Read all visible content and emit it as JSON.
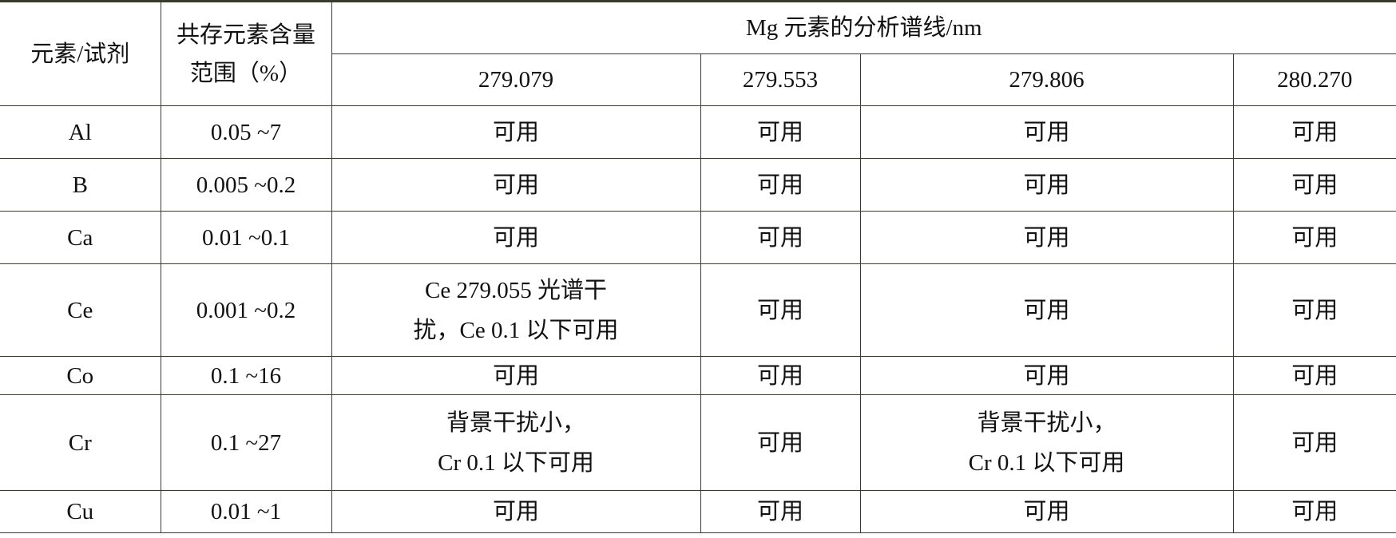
{
  "table": {
    "header": {
      "col1": "元素/试剂",
      "col2_line1": "共存元素含量",
      "col2_line2": "范围（%）",
      "group": "Mg 元素的分析谱线/nm",
      "wavelengths": [
        "279.079",
        "279.553",
        "279.806",
        "280.270"
      ]
    },
    "rows": [
      {
        "element": "Al",
        "range": "0.05 ~7",
        "cells": [
          [
            "可用"
          ],
          [
            "可用"
          ],
          [
            "可用"
          ],
          [
            "可用"
          ]
        ]
      },
      {
        "element": "B",
        "range": "0.005 ~0.2",
        "cells": [
          [
            "可用"
          ],
          [
            "可用"
          ],
          [
            "可用"
          ],
          [
            "可用"
          ]
        ]
      },
      {
        "element": "Ca",
        "range": "0.01 ~0.1",
        "cells": [
          [
            "可用"
          ],
          [
            "可用"
          ],
          [
            "可用"
          ],
          [
            "可用"
          ]
        ]
      },
      {
        "element": "Ce",
        "range": "0.001 ~0.2",
        "cells": [
          [
            "Ce 279.055 光谱干",
            "扰，Ce 0.1 以下可用"
          ],
          [
            "可用"
          ],
          [
            "可用"
          ],
          [
            "可用"
          ]
        ]
      },
      {
        "element": "Co",
        "range": "0.1 ~16",
        "cells": [
          [
            "可用"
          ],
          [
            "可用"
          ],
          [
            "可用"
          ],
          [
            "可用"
          ]
        ]
      },
      {
        "element": "Cr",
        "range": "0.1 ~27",
        "cells": [
          [
            "背景干扰小，",
            "Cr 0.1 以下可用"
          ],
          [
            "可用"
          ],
          [
            "背景干扰小，",
            "Cr 0.1 以下可用"
          ],
          [
            "可用"
          ]
        ]
      },
      {
        "element": "Cu",
        "range": "0.01 ~1",
        "cells": [
          [
            "可用"
          ],
          [
            "可用"
          ],
          [
            "可用"
          ],
          [
            "可用"
          ]
        ]
      }
    ]
  }
}
